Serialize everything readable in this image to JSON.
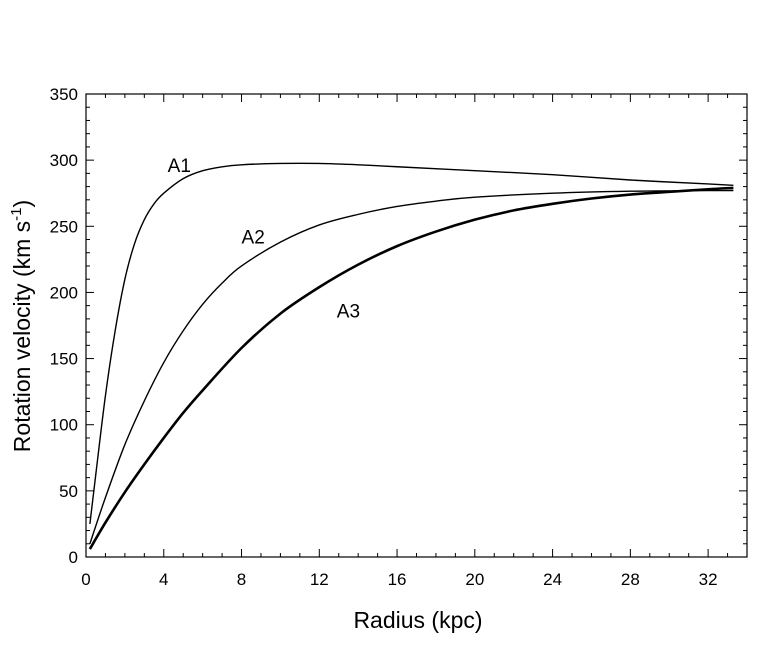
{
  "chart_data": {
    "type": "line",
    "xlabel": "Radius (kpc)",
    "ylabel": {
      "main": "Rotation velocity (km s",
      "superscript": "-1",
      "close": ")"
    },
    "xlim": [
      0,
      34
    ],
    "ylim": [
      0,
      350
    ],
    "x_ticks": [
      0,
      4,
      8,
      12,
      16,
      20,
      24,
      28,
      32
    ],
    "y_ticks": [
      0,
      50,
      100,
      150,
      200,
      250,
      300,
      350
    ],
    "grid": false,
    "series": [
      {
        "name": "A1",
        "line_weight": "thin",
        "x": [
          0.2,
          0.5,
          1,
          1.5,
          2,
          2.5,
          3,
          3.5,
          4,
          5,
          6,
          7,
          8,
          10,
          12,
          14,
          16,
          20,
          24,
          28,
          32,
          33.3
        ],
        "y": [
          25,
          62,
          122,
          171,
          210,
          237,
          255,
          267,
          275,
          286,
          292,
          295,
          296.5,
          297.5,
          297.5,
          296.5,
          295,
          292,
          289,
          285,
          282,
          281
        ]
      },
      {
        "name": "A2",
        "line_weight": "thin",
        "x": [
          0.2,
          1,
          2,
          3,
          4,
          5,
          6,
          7,
          8,
          10,
          12,
          14,
          16,
          18,
          20,
          24,
          28,
          32,
          33.3
        ],
        "y": [
          10,
          45,
          85,
          118,
          147,
          171,
          191,
          207,
          220,
          238,
          251,
          259,
          265,
          269,
          272,
          275,
          276.5,
          277,
          277
        ]
      },
      {
        "name": "A3",
        "line_weight": "thick",
        "x": [
          0.2,
          1,
          2,
          3,
          4,
          5,
          6,
          8,
          10,
          12,
          14,
          16,
          18,
          20,
          22,
          24,
          26,
          28,
          30,
          32,
          33.3
        ],
        "y": [
          6,
          26,
          49,
          70,
          90,
          109,
          126,
          158,
          184,
          204,
          221,
          235,
          246,
          255,
          262,
          267,
          271,
          274,
          276,
          278,
          279
        ]
      }
    ]
  }
}
